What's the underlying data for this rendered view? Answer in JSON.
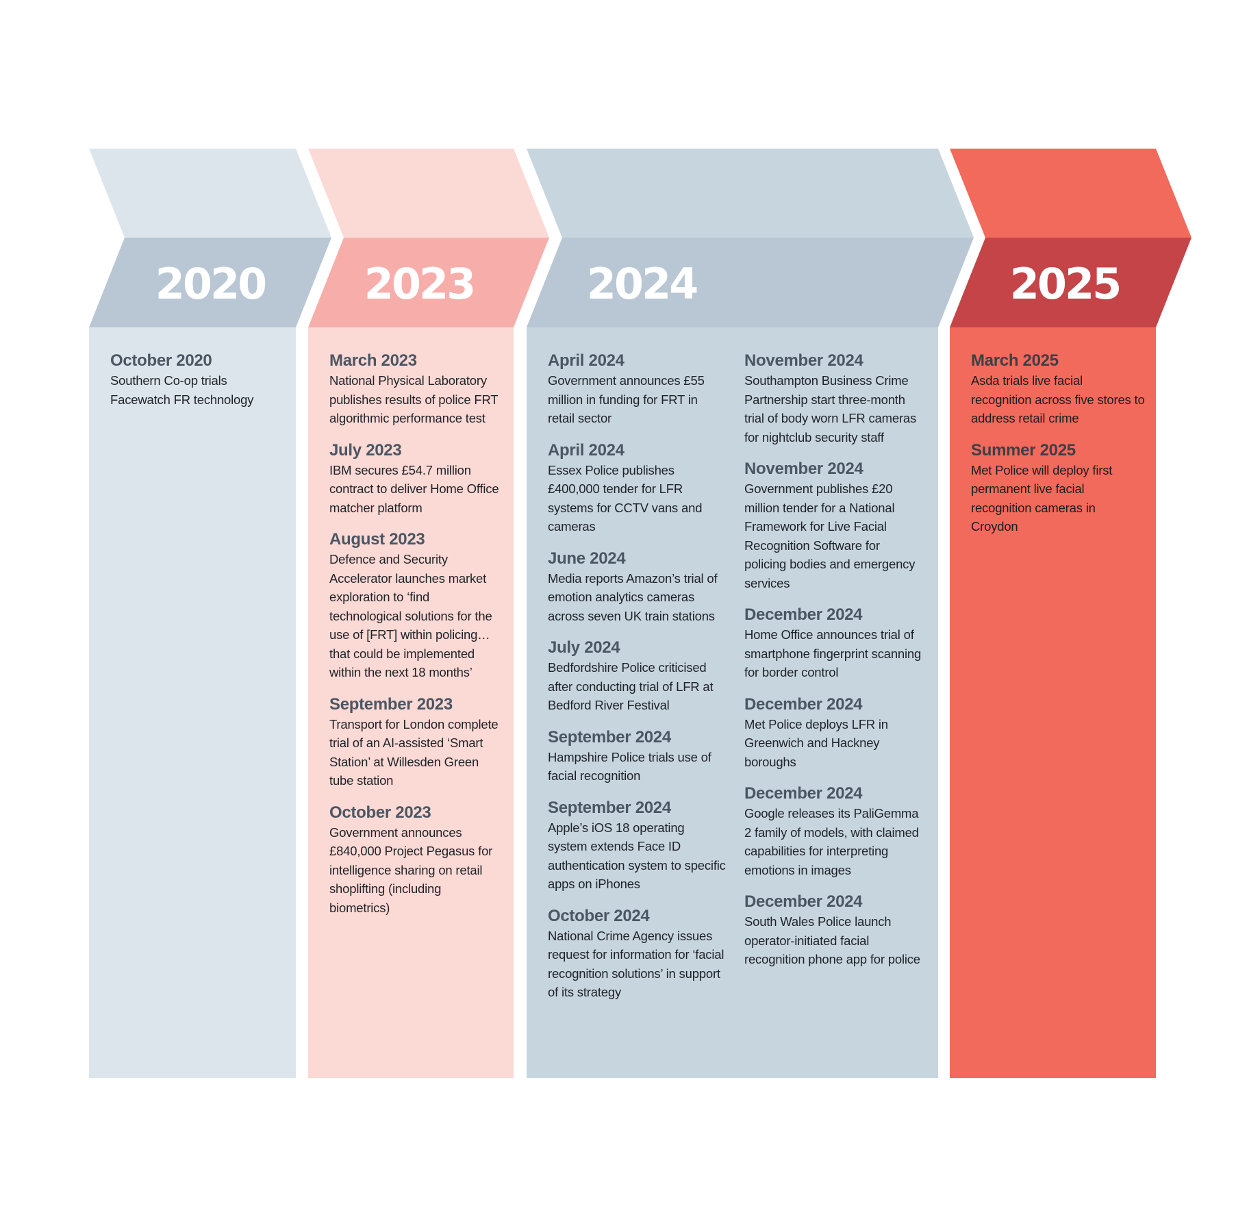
{
  "colors": {
    "2020_top": "#dde5ec",
    "2020_band": "#b9c7d4",
    "2020_body": "#dde5ec",
    "2023_top": "#fbd9d5",
    "2023_band": "#f7aeab",
    "2023_body": "#fbd9d5",
    "2024_top": "#c7d5df",
    "2024_band": "#b9c7d4",
    "2024_body": "#c7d5df",
    "2025_top": "#f26a5b",
    "2025_band": "#c44448",
    "2025_body": "#f26a5b"
  },
  "timeline": [
    {
      "year": "2020",
      "events": [
        {
          "date": "October 2020",
          "text": "Southern Co-op trials Facewatch FR technology"
        }
      ]
    },
    {
      "year": "2023",
      "events": [
        {
          "date": "March 2023",
          "text": "National Physical Laboratory publishes results of police FRT algorithmic performance test"
        },
        {
          "date": "July 2023",
          "text": "IBM secures £54.7 million contract to deliver Home Office matcher platform"
        },
        {
          "date": "August 2023",
          "text": "Defence and Security Accelerator launches market exploration to ‘find technological solutions for the use of [FRT] within policing…that could be implemented within the next 18 months’"
        },
        {
          "date": "September 2023",
          "text": "Transport for London complete trial of an AI-assisted ‘Smart Station’ at Willesden Green tube station"
        },
        {
          "date": "October 2023",
          "text": "Government announces £840,000 Project Pegasus for intelligence sharing on retail shoplifting (including biometrics)"
        }
      ]
    },
    {
      "year": "2024",
      "events_left": [
        {
          "date": "April 2024",
          "text": "Government announces £55 million in funding for FRT in retail sector"
        },
        {
          "date": "April 2024",
          "text": "Essex Police publishes £400,000 tender for LFR systems for CCTV vans and cameras"
        },
        {
          "date": "June 2024",
          "text": "Media reports Amazon’s trial of emotion analytics cameras across seven UK train stations"
        },
        {
          "date": "July 2024",
          "text": "Bedfordshire Police criticised after conducting trial of LFR at Bedford River Festival"
        },
        {
          "date": "September 2024",
          "text": "Hampshire Police trials use of facial recognition"
        },
        {
          "date": "September 2024",
          "text": "Apple’s iOS 18 operating system extends Face ID authentication system to specific apps on iPhones"
        },
        {
          "date": "October 2024",
          "text": "National Crime Agency issues request for information for ‘facial recognition solutions’ in support of its strategy"
        }
      ],
      "events_right": [
        {
          "date": "November 2024",
          "text": "Southampton Business Crime Partnership start three-month trial of body worn LFR cameras for nightclub security staff"
        },
        {
          "date": "November 2024",
          "text": "Government publishes £20 million tender for a National Framework for Live Facial Recognition Software for policing bodies and emergency services"
        },
        {
          "date": "December 2024",
          "text": "Home Office announces trial of smartphone fingerprint scanning for border control"
        },
        {
          "date": "December 2024",
          "text": "Met Police deploys LFR in Greenwich and Hackney boroughs"
        },
        {
          "date": "December 2024",
          "text": "Google releases its PaliGemma 2 family of models, with claimed capabilities for interpreting emotions in images"
        },
        {
          "date": "December 2024",
          "text": "South Wales Police launch operator-initiated facial recognition phone app for police"
        }
      ]
    },
    {
      "year": "2025",
      "events": [
        {
          "date": "March 2025",
          "text": "Asda trials live facial recognition across five stores to address retail crime"
        },
        {
          "date": "Summer 2025",
          "text": "Met Police will deploy first permanent live facial recognition cameras in Croydon"
        }
      ]
    }
  ]
}
